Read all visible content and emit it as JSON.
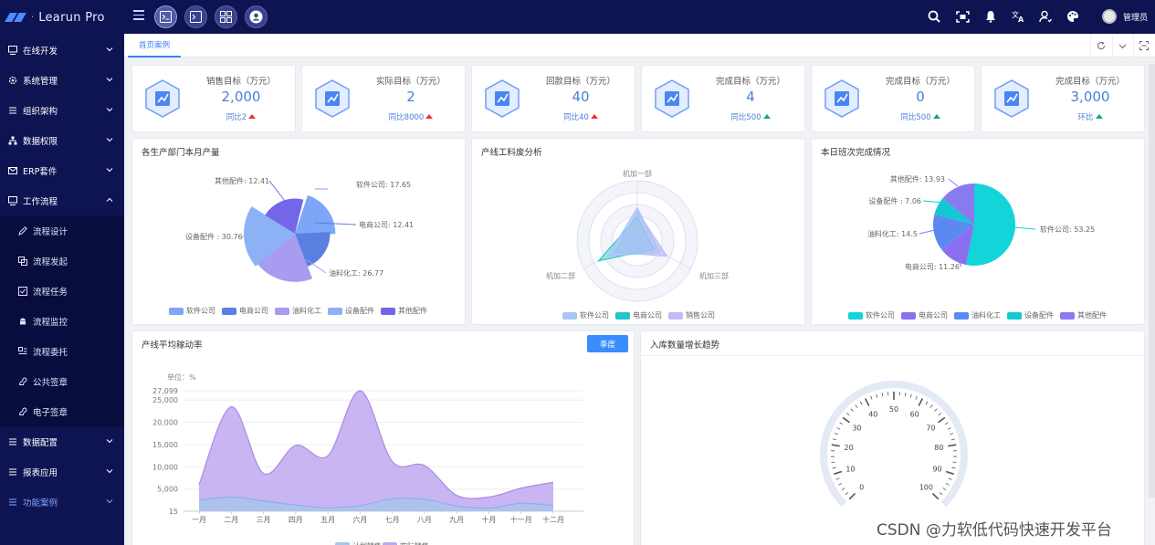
{
  "app": {
    "title": "Learun Pro",
    "user_name": "管理员"
  },
  "top_modules": [
    "terminal-module",
    "console-module",
    "grid-module",
    "user-module"
  ],
  "top_right_icons": [
    "search-icon",
    "fullscreen-icon",
    "bell-icon",
    "translate-icon",
    "user-settings-icon",
    "palette-icon"
  ],
  "sidebar": {
    "groups_top": [
      {
        "label": "在线开发",
        "icon": "monitor-icon",
        "expanded": false
      },
      {
        "label": "系统管理",
        "icon": "gear-icon",
        "expanded": false
      },
      {
        "label": "组织架构",
        "icon": "list-icon",
        "expanded": false
      },
      {
        "label": "数据权限",
        "icon": "org-icon",
        "expanded": false
      },
      {
        "label": "ERP套件",
        "icon": "mail-icon",
        "expanded": false
      },
      {
        "label": "工作流程",
        "icon": "monitor-icon",
        "expanded": true
      }
    ],
    "workflow_items": [
      {
        "label": "流程设计",
        "icon": "pen-icon"
      },
      {
        "label": "流程发起",
        "icon": "copy-icon"
      },
      {
        "label": "流程任务",
        "icon": "check-square-icon"
      },
      {
        "label": "流程监控",
        "icon": "android-icon"
      },
      {
        "label": "流程委托",
        "icon": "transfer-icon"
      },
      {
        "label": "公共签章",
        "icon": "stamp-icon"
      },
      {
        "label": "电子签章",
        "icon": "stamp-icon"
      }
    ],
    "groups_bottom": [
      {
        "label": "数据配置",
        "icon": "list-icon"
      },
      {
        "label": "报表应用",
        "icon": "list-icon"
      },
      {
        "label": "功能案例",
        "icon": "list-icon",
        "highlight": true
      }
    ]
  },
  "tabs": {
    "home": "首页案例"
  },
  "kpis": [
    {
      "title": "销售目标（万元）",
      "value": "2,000",
      "ratio": "同比2",
      "trend": "up-red"
    },
    {
      "title": "实际目标（万元）",
      "value": "2",
      "ratio": "同比8000",
      "trend": "up-red"
    },
    {
      "title": "回款目标（万元）",
      "value": "40",
      "ratio": "同比40",
      "trend": "up-red"
    },
    {
      "title": "完成目标（万元）",
      "value": "4",
      "ratio": "同比500",
      "trend": "up-green"
    },
    {
      "title": "完成目标（万元）",
      "value": "0",
      "ratio": "同比500",
      "trend": "up-green"
    },
    {
      "title": "完成目标（万元）",
      "value": "3,000",
      "ratio": "环比",
      "trend": "up-green"
    }
  ],
  "panels": {
    "production": "各生产部门本月产量",
    "waste": "产线工料废分析",
    "shift": "本日班次完成情况",
    "rate": "产线平均稼动率",
    "inbound": "入库数量增长趋势",
    "season_button": "季度"
  },
  "colors": {
    "brand_dark": "#0e1452",
    "accent": "#3b82f6",
    "up_red": "#e33333",
    "up_green": "#1aa878"
  },
  "watermark": "CSDN @力软低代码快速开发平台",
  "chart_data": [
    {
      "type": "pie",
      "variant": "rose",
      "title": "各生产部门本月产量",
      "categories": [
        "软件公司",
        "电商公司",
        "油料化工",
        "设备配件",
        "其他配件"
      ],
      "values": [
        17.65,
        12.41,
        26.77,
        30.76,
        12.41
      ],
      "labels": [
        "软件公司: 17.65",
        "电商公司: 12.41",
        "油料化工: 26.77",
        "设备配件 : 30.76",
        "其他配件: 12.41"
      ],
      "colors": [
        "#7ea6f7",
        "#5b7fe0",
        "#a79cf0",
        "#8cb1f5",
        "#7366e8"
      ],
      "legend_position": "bottom"
    },
    {
      "type": "radar",
      "title": "产线工料废分析",
      "indicators": [
        "机加一部",
        "机加二部",
        "机加三部"
      ],
      "series": [
        {
          "name": "软件公司",
          "values": [
            0.55,
            0.55,
            0.42
          ]
        },
        {
          "name": "电商公司",
          "values": [
            0.4,
            0.72,
            0.3
          ]
        },
        {
          "name": "销售公司",
          "values": [
            0.5,
            0.42,
            0.55
          ]
        }
      ],
      "colors": [
        "#a9c4f7",
        "#1ec8c8",
        "#c5b8f5"
      ],
      "legend_position": "bottom"
    },
    {
      "type": "pie",
      "title": "本日班次完成情况",
      "categories": [
        "软件公司",
        "电商公司",
        "油料化工",
        "设备配件",
        "其他配件"
      ],
      "values": [
        53.25,
        11.26,
        14.5,
        7.06,
        13.93
      ],
      "labels": [
        "软件公司: 53.25",
        "电商公司: 11.26",
        "油料化工: 14.5",
        "设备配件 : 7.06",
        "其他配件: 13.93"
      ],
      "colors": [
        "#13d4d9",
        "#8b6ff0",
        "#5a8af0",
        "#13c8d4",
        "#8a7af0"
      ],
      "legend_position": "bottom"
    },
    {
      "type": "area",
      "title": "产线平均稼动率",
      "unit_label": "单位：%",
      "categories": [
        "一月",
        "二月",
        "三月",
        "四月",
        "五月",
        "六月",
        "七月",
        "八月",
        "九月",
        "十月",
        "十一月",
        "十二月"
      ],
      "y_ticks": [
        "27,099",
        "25,000",
        "20,000",
        "15,000",
        "10,000",
        "5,000",
        "15"
      ],
      "ylim": [
        15,
        27099
      ],
      "series": [
        {
          "name": "计划销售",
          "values": [
            2500,
            3200,
            2300,
            1400,
            800,
            1300,
            2800,
            2700,
            1200,
            700,
            1800,
            1300
          ]
        },
        {
          "name": "实际销售",
          "values": [
            6000,
            23500,
            8500,
            14800,
            12500,
            27099,
            11200,
            10300,
            3600,
            3200,
            5200,
            6500
          ]
        }
      ],
      "colors": [
        "#a9c4f0",
        "#c0a8ee"
      ],
      "legend_position": "bottom"
    },
    {
      "type": "gauge",
      "title": "入库数量增长趋势",
      "ticks": [
        "0",
        "10",
        "20",
        "30",
        "40",
        "50",
        "60",
        "70",
        "80",
        "90",
        "100"
      ],
      "min": 0,
      "max": 100
    }
  ]
}
